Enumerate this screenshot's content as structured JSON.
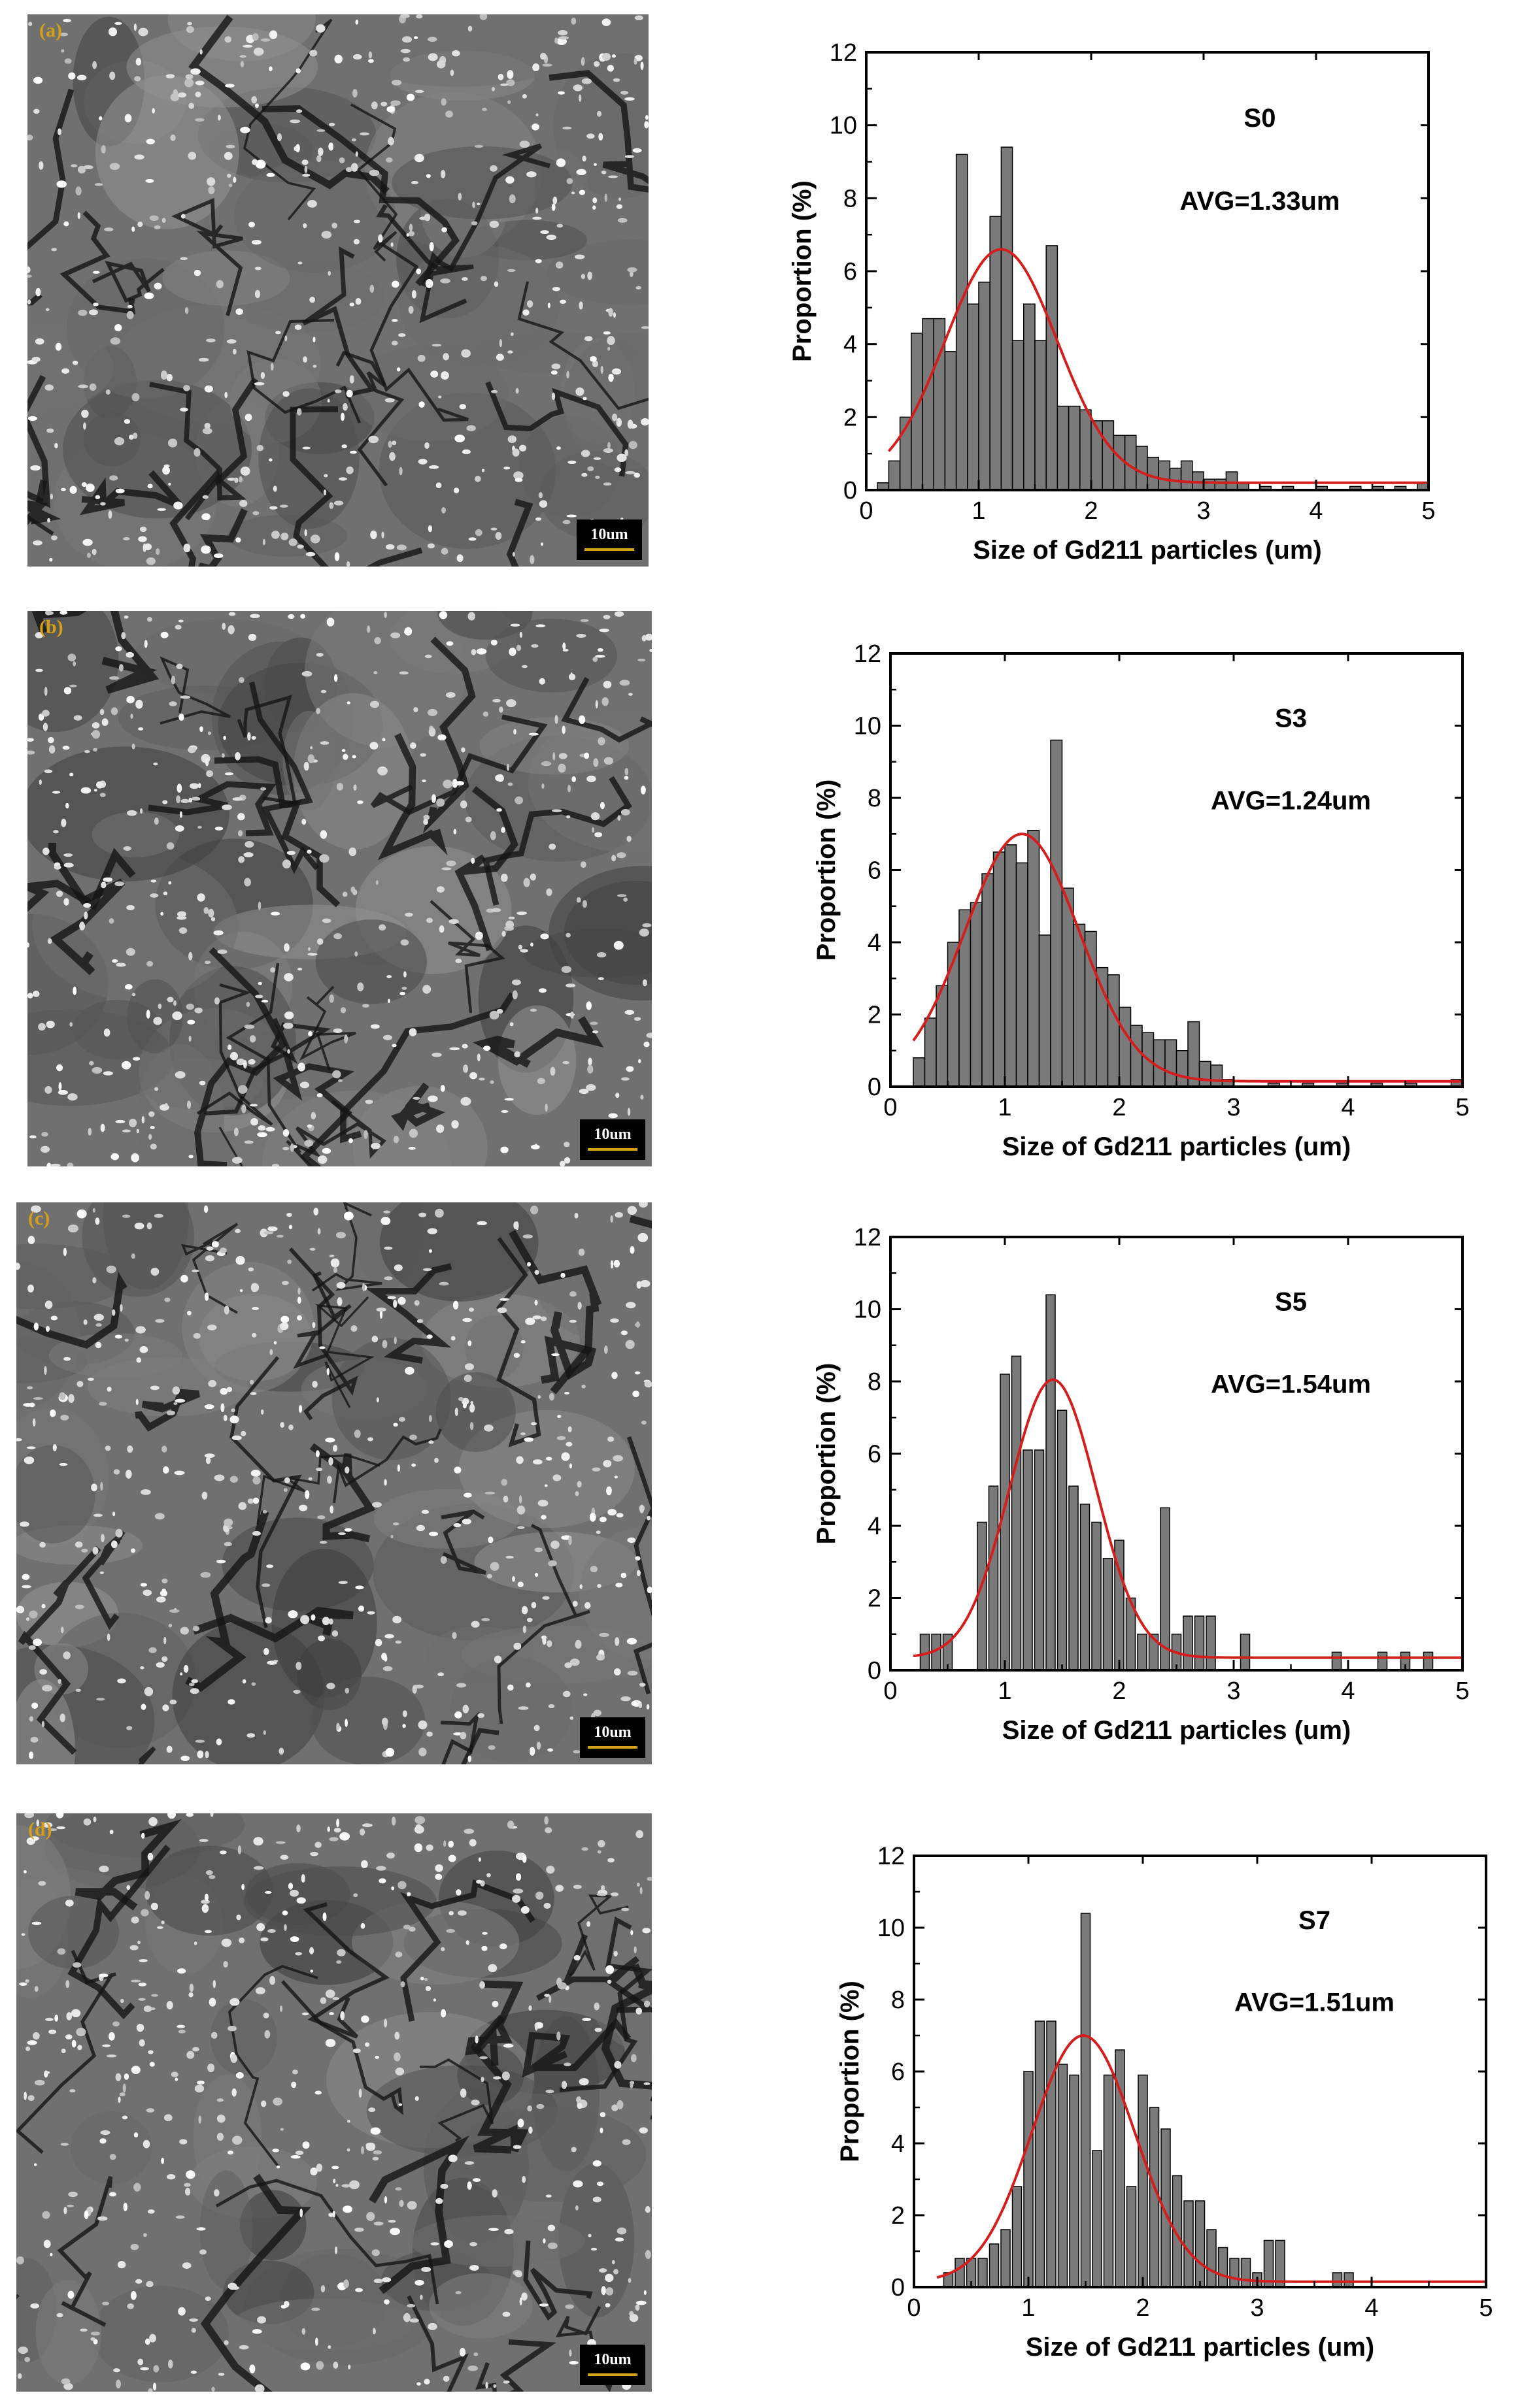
{
  "panels": [
    {
      "label": "(a)",
      "scale_text": "10um"
    },
    {
      "label": "(b)",
      "scale_text": "10um"
    },
    {
      "label": "(c)",
      "scale_text": "10um"
    },
    {
      "label": "(d)",
      "scale_text": "10um"
    }
  ],
  "chart_data": [
    {
      "type": "bar",
      "sample": "S0",
      "avg_text": "AVG=1.33um",
      "xlabel": "Size of Gd211 particles (um)",
      "ylabel": "Proportion (%)",
      "xlim": [
        0,
        5
      ],
      "ylim": [
        0,
        12
      ],
      "xticks": [
        0,
        1,
        2,
        3,
        4,
        5
      ],
      "yticks": [
        0,
        2,
        4,
        6,
        8,
        10,
        12
      ],
      "bin_width": 0.1,
      "bins": [
        0.15,
        0.25,
        0.35,
        0.45,
        0.55,
        0.65,
        0.75,
        0.85,
        0.95,
        1.05,
        1.15,
        1.25,
        1.35,
        1.45,
        1.55,
        1.65,
        1.75,
        1.85,
        1.95,
        2.05,
        2.15,
        2.25,
        2.35,
        2.45,
        2.55,
        2.65,
        2.75,
        2.85,
        2.95,
        3.05,
        3.15,
        3.25,
        3.35,
        3.55,
        3.75,
        4.05,
        4.35,
        4.55,
        4.75,
        4.95
      ],
      "values": [
        0.2,
        0.8,
        2.0,
        4.3,
        4.7,
        4.7,
        3.8,
        9.2,
        5.1,
        5.7,
        7.5,
        9.4,
        4.1,
        5.1,
        4.1,
        6.7,
        2.3,
        2.3,
        2.2,
        1.9,
        1.9,
        1.5,
        1.5,
        1.2,
        0.9,
        0.8,
        0.6,
        0.8,
        0.5,
        0.3,
        0.3,
        0.5,
        0.2,
        0.1,
        0.1,
        0.1,
        0.1,
        0.1,
        0.1,
        0.2
      ],
      "fit": {
        "type": "gaussian",
        "mean": 1.2,
        "sigma": 0.5,
        "amplitude": 6.4,
        "baseline": 0.2
      }
    },
    {
      "type": "bar",
      "sample": "S3",
      "avg_text": "AVG=1.24um",
      "xlabel": "Size of Gd211 particles (um)",
      "ylabel": "Proportion (%)",
      "xlim": [
        0,
        5
      ],
      "ylim": [
        0,
        12
      ],
      "xticks": [
        0,
        1,
        2,
        3,
        4,
        5
      ],
      "yticks": [
        0,
        2,
        4,
        6,
        8,
        10,
        12
      ],
      "bin_width": 0.1,
      "bins": [
        0.25,
        0.35,
        0.45,
        0.55,
        0.65,
        0.75,
        0.85,
        0.95,
        1.05,
        1.15,
        1.25,
        1.35,
        1.45,
        1.55,
        1.65,
        1.75,
        1.85,
        1.95,
        2.05,
        2.15,
        2.25,
        2.35,
        2.45,
        2.55,
        2.65,
        2.75,
        2.85,
        2.95,
        3.35,
        3.65,
        3.95,
        4.25,
        4.55,
        4.95
      ],
      "values": [
        0.8,
        1.9,
        2.8,
        4.0,
        4.9,
        5.1,
        5.9,
        6.5,
        6.7,
        6.2,
        7.1,
        4.2,
        9.6,
        5.5,
        4.5,
        4.3,
        3.3,
        3.1,
        2.2,
        1.7,
        1.5,
        1.3,
        1.3,
        1.0,
        1.8,
        0.7,
        0.6,
        0.2,
        0.1,
        0.1,
        0.1,
        0.1,
        0.1,
        0.2
      ],
      "fit": {
        "type": "gaussian",
        "mean": 1.15,
        "sigma": 0.5,
        "amplitude": 6.85,
        "baseline": 0.15
      }
    },
    {
      "type": "bar",
      "sample": "S5",
      "avg_text": "AVG=1.54um",
      "xlabel": "Size of Gd211 particles (um)",
      "ylabel": "Proportion (%)",
      "xlim": [
        0,
        5
      ],
      "ylim": [
        0,
        12
      ],
      "xticks": [
        0,
        1,
        2,
        3,
        4,
        5
      ],
      "yticks": [
        0,
        2,
        4,
        6,
        8,
        10,
        12
      ],
      "bin_width": 0.08,
      "bins": [
        0.3,
        0.4,
        0.5,
        0.8,
        0.9,
        1.0,
        1.1,
        1.2,
        1.3,
        1.4,
        1.5,
        1.6,
        1.7,
        1.8,
        1.9,
        2.0,
        2.1,
        2.2,
        2.3,
        2.4,
        2.5,
        2.6,
        2.7,
        2.8,
        3.1,
        3.9,
        4.3,
        4.5,
        4.7
      ],
      "values": [
        1.0,
        1.0,
        1.0,
        4.1,
        5.1,
        8.2,
        8.7,
        6.1,
        6.1,
        10.4,
        7.2,
        5.1,
        4.6,
        4.1,
        3.1,
        3.6,
        2.0,
        1.0,
        1.0,
        4.5,
        1.0,
        1.5,
        1.5,
        1.5,
        1.0,
        0.5,
        0.5,
        0.5,
        0.5
      ],
      "fit": {
        "type": "gaussian",
        "mean": 1.42,
        "sigma": 0.38,
        "amplitude": 7.7,
        "baseline": 0.35
      }
    },
    {
      "type": "bar",
      "sample": "S7",
      "avg_text": "AVG=1.51um",
      "xlabel": "Size of Gd211 particles (um)",
      "ylabel": "Proportion (%)",
      "xlim": [
        0,
        5
      ],
      "ylim": [
        0,
        12
      ],
      "xticks": [
        0,
        1,
        2,
        3,
        4,
        5
      ],
      "yticks": [
        0,
        2,
        4,
        6,
        8,
        10,
        12
      ],
      "bin_width": 0.08,
      "bins": [
        0.3,
        0.4,
        0.5,
        0.6,
        0.7,
        0.8,
        0.9,
        1.0,
        1.1,
        1.2,
        1.3,
        1.4,
        1.5,
        1.6,
        1.7,
        1.8,
        1.9,
        2.0,
        2.1,
        2.2,
        2.3,
        2.4,
        2.5,
        2.6,
        2.7,
        2.8,
        2.9,
        3.0,
        3.1,
        3.2,
        3.7,
        3.8
      ],
      "values": [
        0.4,
        0.8,
        0.8,
        0.8,
        1.2,
        1.6,
        2.8,
        6.0,
        7.4,
        7.4,
        6.2,
        5.9,
        10.4,
        3.8,
        5.9,
        6.6,
        2.8,
        5.9,
        5.0,
        4.4,
        3.1,
        2.4,
        2.4,
        1.6,
        1.1,
        0.8,
        0.8,
        0.4,
        1.3,
        1.3,
        0.4,
        0.4
      ],
      "fit": {
        "type": "gaussian",
        "mean": 1.48,
        "sigma": 0.45,
        "amplitude": 6.85,
        "baseline": 0.15
      }
    }
  ]
}
